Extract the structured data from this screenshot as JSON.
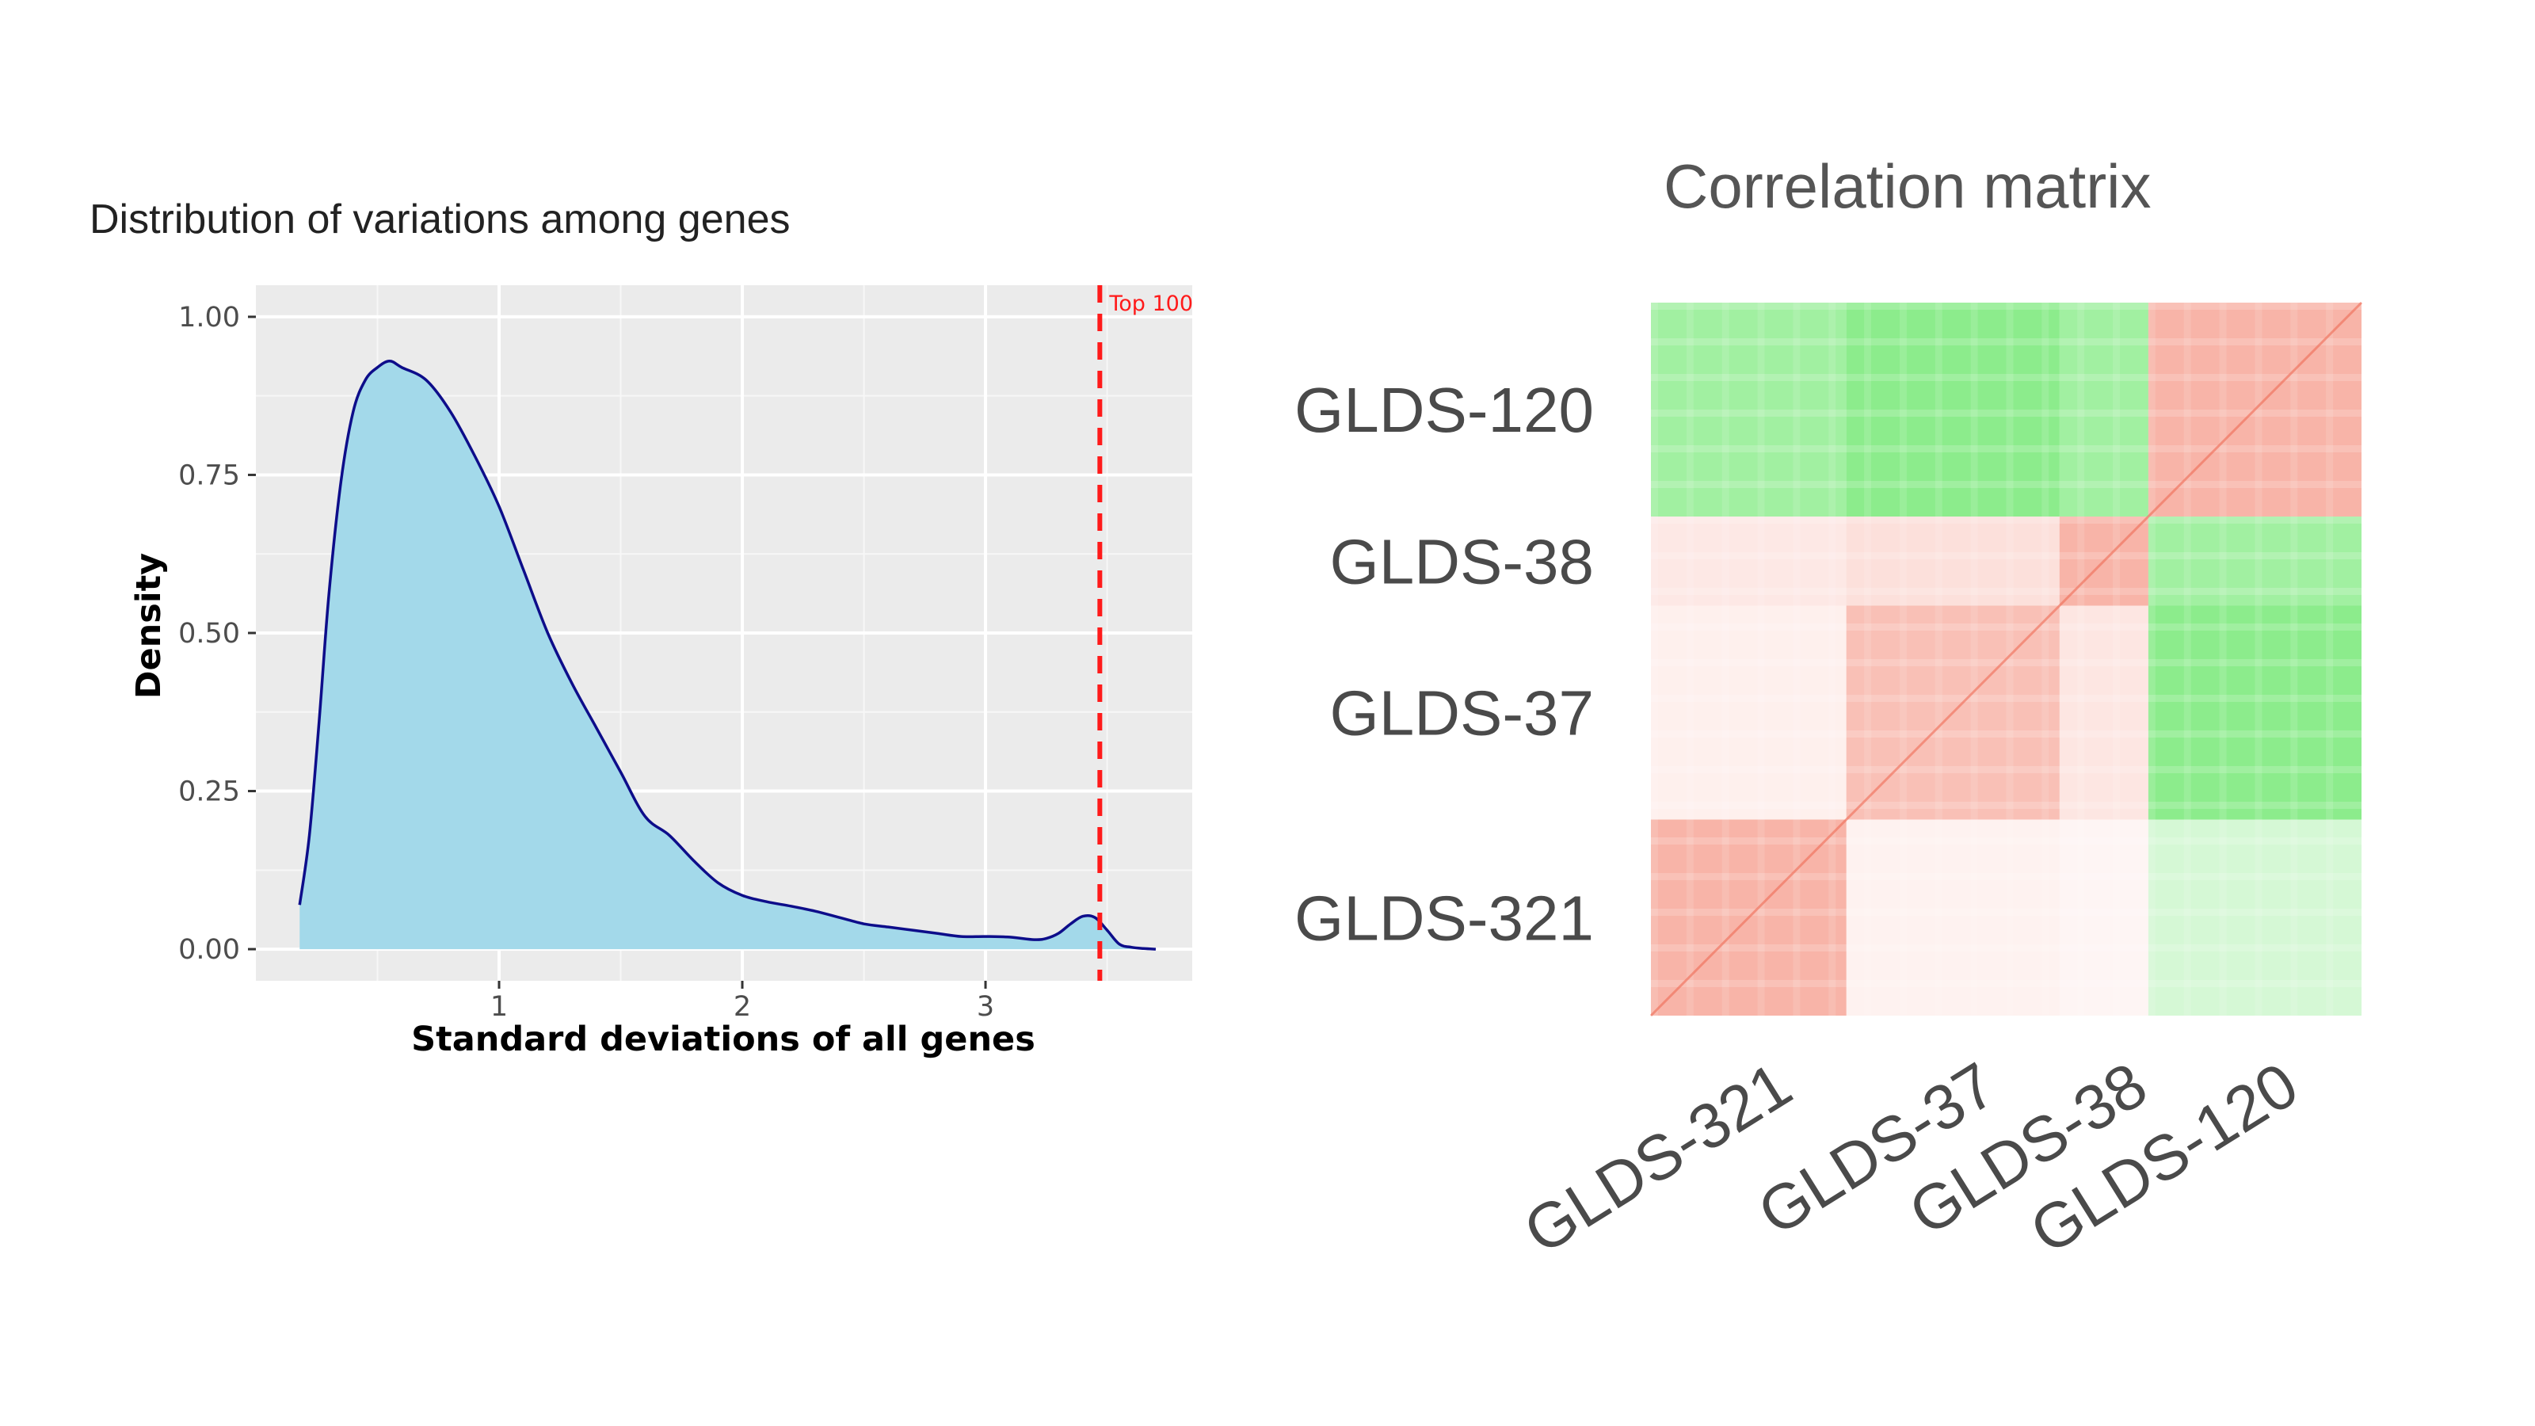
{
  "chart_data": [
    {
      "type": "area",
      "title": "Distribution of variations among genes",
      "xlabel": "Standard deviations of all genes",
      "ylabel": "Density",
      "xlim": [
        0.0,
        3.85
      ],
      "ylim": [
        -0.05,
        1.05
      ],
      "x_ticks": [
        1,
        2,
        3
      ],
      "x_tick_labels": [
        "1",
        "2",
        "3"
      ],
      "y_ticks": [
        0.0,
        0.25,
        0.5,
        0.75,
        1.0
      ],
      "y_tick_labels": [
        "0.00",
        "0.25",
        "0.50",
        "0.75",
        "1.00"
      ],
      "grid": true,
      "fill_color": "#a3d9ea",
      "line_color": "#0d0d8a",
      "x": [
        0.18,
        0.22,
        0.26,
        0.3,
        0.35,
        0.4,
        0.45,
        0.5,
        0.55,
        0.6,
        0.7,
        0.8,
        0.9,
        1.0,
        1.1,
        1.2,
        1.3,
        1.4,
        1.5,
        1.6,
        1.7,
        1.8,
        1.9,
        2.0,
        2.1,
        2.2,
        2.3,
        2.4,
        2.5,
        2.6,
        2.7,
        2.8,
        2.9,
        3.0,
        3.1,
        3.2,
        3.25,
        3.3,
        3.35,
        3.4,
        3.45,
        3.5,
        3.55,
        3.6,
        3.65,
        3.7
      ],
      "y": [
        0.07,
        0.18,
        0.36,
        0.56,
        0.74,
        0.85,
        0.9,
        0.92,
        0.93,
        0.92,
        0.9,
        0.85,
        0.78,
        0.7,
        0.6,
        0.5,
        0.42,
        0.35,
        0.28,
        0.21,
        0.18,
        0.14,
        0.105,
        0.085,
        0.075,
        0.068,
        0.06,
        0.05,
        0.04,
        0.035,
        0.03,
        0.025,
        0.02,
        0.02,
        0.019,
        0.015,
        0.017,
        0.025,
        0.04,
        0.052,
        0.05,
        0.03,
        0.008,
        0.003,
        0.001,
        0.0
      ],
      "annotation": {
        "type": "vline",
        "x": 3.47,
        "color": "#ff1a1a",
        "style": "dashed",
        "label": "Top 100"
      }
    },
    {
      "type": "heatmap",
      "title": "Correlation matrix",
      "row_labels": [
        "GLDS-120",
        "GLDS-38",
        "GLDS-37",
        "GLDS-321"
      ],
      "col_labels": [
        "GLDS-321",
        "GLDS-37",
        "GLDS-38",
        "GLDS-120"
      ],
      "color_scale": {
        "positive": "#f4826e",
        "neutral": "#ffffff",
        "negative": "#2edd2e"
      },
      "blocks_top_to_bottom": [
        "GLDS-120",
        "GLDS-38",
        "GLDS-37",
        "GLDS-321"
      ],
      "blocks_left_to_right": [
        "GLDS-321",
        "GLDS-37",
        "GLDS-38",
        "GLDS-120"
      ],
      "cross_correlation": [
        {
          "row": "GLDS-120",
          "col": "GLDS-321",
          "sign": "negative",
          "strength": 0.45
        },
        {
          "row": "GLDS-120",
          "col": "GLDS-37",
          "sign": "negative",
          "strength": 0.55
        },
        {
          "row": "GLDS-120",
          "col": "GLDS-38",
          "sign": "negative",
          "strength": 0.45
        },
        {
          "row": "GLDS-120",
          "col": "GLDS-120",
          "sign": "positive",
          "strength": 0.6
        },
        {
          "row": "GLDS-38",
          "col": "GLDS-321",
          "sign": "positive",
          "strength": 0.18
        },
        {
          "row": "GLDS-38",
          "col": "GLDS-37",
          "sign": "positive",
          "strength": 0.25
        },
        {
          "row": "GLDS-38",
          "col": "GLDS-38",
          "sign": "positive",
          "strength": 0.6
        },
        {
          "row": "GLDS-38",
          "col": "GLDS-120",
          "sign": "negative",
          "strength": 0.45
        },
        {
          "row": "GLDS-37",
          "col": "GLDS-321",
          "sign": "positive",
          "strength": 0.12
        },
        {
          "row": "GLDS-37",
          "col": "GLDS-37",
          "sign": "positive",
          "strength": 0.5
        },
        {
          "row": "GLDS-37",
          "col": "GLDS-38",
          "sign": "positive",
          "strength": 0.2
        },
        {
          "row": "GLDS-37",
          "col": "GLDS-120",
          "sign": "negative",
          "strength": 0.55
        },
        {
          "row": "GLDS-321",
          "col": "GLDS-321",
          "sign": "positive",
          "strength": 0.6
        },
        {
          "row": "GLDS-321",
          "col": "GLDS-37",
          "sign": "positive",
          "strength": 0.1
        },
        {
          "row": "GLDS-321",
          "col": "GLDS-38",
          "sign": "positive",
          "strength": 0.08
        },
        {
          "row": "GLDS-321",
          "col": "GLDS-120",
          "sign": "negative",
          "strength": 0.2
        }
      ]
    }
  ]
}
